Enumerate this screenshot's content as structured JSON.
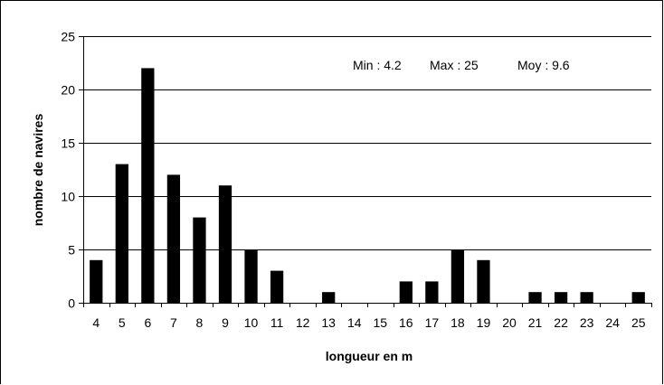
{
  "chart_data": {
    "type": "bar",
    "title": "",
    "xlabel": "longueur en m",
    "ylabel": "nombre de navires",
    "categories": [
      "4",
      "5",
      "6",
      "7",
      "8",
      "9",
      "10",
      "11",
      "12",
      "13",
      "14",
      "15",
      "16",
      "17",
      "18",
      "19",
      "20",
      "21",
      "22",
      "23",
      "24",
      "25"
    ],
    "values": [
      4,
      13,
      22,
      12,
      8,
      11,
      5,
      3,
      0,
      1,
      0,
      0,
      2,
      2,
      5,
      4,
      0,
      1,
      1,
      1,
      0,
      1
    ],
    "ylim": [
      0,
      25
    ],
    "yticks": [
      0,
      5,
      10,
      15,
      20,
      25
    ],
    "grid": "horizontal",
    "legend": "none",
    "bar_color": "#000000",
    "annotation": {
      "min": "Min : 4.2",
      "max": "Max : 25",
      "moy": "Moy : 9.6"
    }
  }
}
